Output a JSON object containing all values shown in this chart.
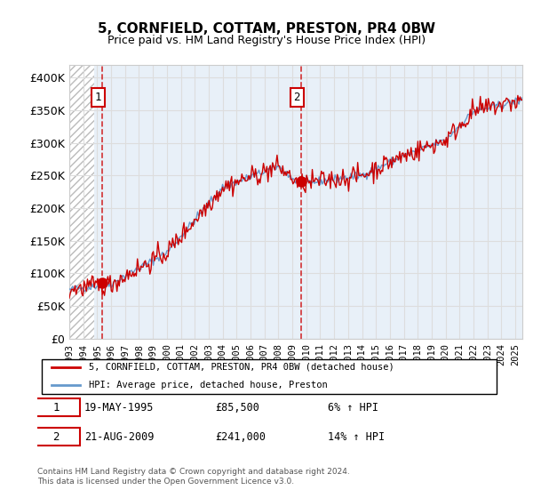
{
  "title": "5, CORNFIELD, COTTAM, PRESTON, PR4 0BW",
  "subtitle": "Price paid vs. HM Land Registry's House Price Index (HPI)",
  "ylabel_ticks": [
    "£0",
    "£50K",
    "£100K",
    "£150K",
    "£200K",
    "£250K",
    "£300K",
    "£350K",
    "£400K"
  ],
  "ytick_values": [
    0,
    50000,
    100000,
    150000,
    200000,
    250000,
    300000,
    350000,
    400000
  ],
  "ylim": [
    0,
    420000
  ],
  "xlim_start": 1993.0,
  "xlim_end": 2025.5,
  "hpi_color": "#6699cc",
  "price_color": "#cc0000",
  "bg_hatch_color": "#cccccc",
  "marker1_x": 1995.38,
  "marker1_y": 85500,
  "marker2_x": 2009.63,
  "marker2_y": 241000,
  "legend_line1": "5, CORNFIELD, COTTAM, PRESTON, PR4 0BW (detached house)",
  "legend_line2": "HPI: Average price, detached house, Preston",
  "note1_num": "1",
  "note1_date": "19-MAY-1995",
  "note1_price": "£85,500",
  "note1_hpi": "6% ↑ HPI",
  "note2_num": "2",
  "note2_date": "21-AUG-2009",
  "note2_price": "£241,000",
  "note2_hpi": "14% ↑ HPI",
  "footer": "Contains HM Land Registry data © Crown copyright and database right 2024.\nThis data is licensed under the Open Government Licence v3.0.",
  "grid_color": "#dddddd",
  "hatch_color": "#cccccc",
  "plot_bg": "#e8f0f8"
}
